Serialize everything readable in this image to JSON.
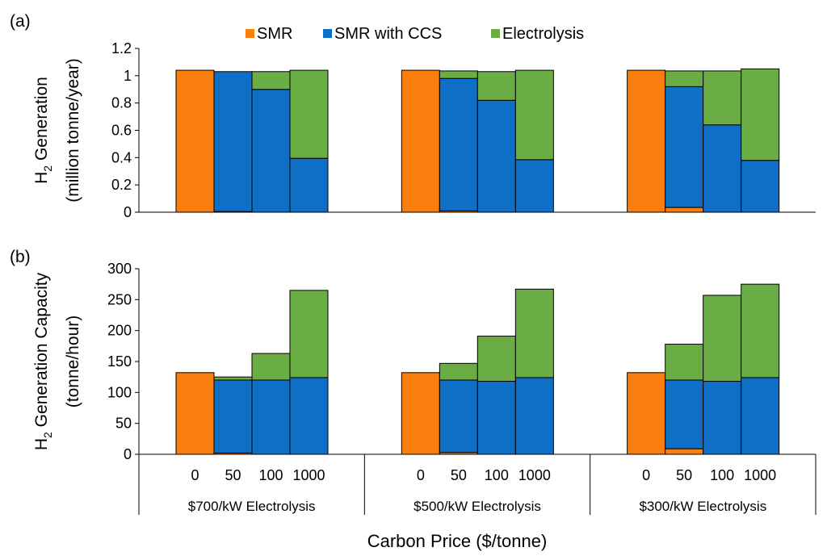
{
  "chart_data": {
    "type": "bar",
    "stacked": true,
    "xlabel": "Carbon Price ($/tonne)",
    "categories": [
      "0",
      "50",
      "100",
      "1000"
    ],
    "groups": [
      "$700/kW Electrolysis",
      "$500/kW Electrolysis",
      "$300/kW Electrolysis"
    ],
    "legend": {
      "position": "top",
      "entries": [
        "SMR",
        "SMR with CCS",
        "Electrolysis"
      ]
    },
    "colors": {
      "SMR": "#F97E0E",
      "SMR with CCS": "#0F6FC6",
      "Electrolysis": "#6BAD45"
    },
    "grid": false,
    "panels": [
      {
        "label": "(a)",
        "ylabel_lines": [
          {
            "main": "H",
            "sub": "2",
            "rest": " Generation"
          },
          {
            "main": "(million tonne/year)",
            "sub": "",
            "rest": ""
          }
        ],
        "ylim": [
          0,
          1.2
        ],
        "yticks": [
          "0",
          "0.2",
          "0.4",
          "0.6",
          "0.8",
          "1",
          "1.2"
        ],
        "series": [
          {
            "name": "SMR",
            "values": [
              [
                1.04,
                0.005,
                0,
                0
              ],
              [
                1.04,
                0.01,
                0,
                0
              ],
              [
                1.04,
                0.035,
                0,
                0
              ]
            ]
          },
          {
            "name": "SMR with CCS",
            "values": [
              [
                0,
                1.025,
                0.9,
                0.395
              ],
              [
                0,
                0.97,
                0.82,
                0.385
              ],
              [
                0,
                0.885,
                0.64,
                0.38
              ]
            ]
          },
          {
            "name": "Electrolysis",
            "values": [
              [
                0,
                0,
                0.13,
                0.645
              ],
              [
                0,
                0.055,
                0.21,
                0.655
              ],
              [
                0,
                0.115,
                0.395,
                0.67
              ]
            ]
          }
        ]
      },
      {
        "label": "(b)",
        "ylabel_lines": [
          {
            "main": "H",
            "sub": "2",
            "rest": " Generation Capacity"
          },
          {
            "main": "(tonne/hour)",
            "sub": "",
            "rest": ""
          }
        ],
        "ylim": [
          0,
          300
        ],
        "yticks": [
          "0",
          "50",
          "100",
          "150",
          "200",
          "250",
          "300"
        ],
        "series": [
          {
            "name": "SMR",
            "values": [
              [
                132,
                2,
                0,
                0
              ],
              [
                132,
                3,
                0,
                0
              ],
              [
                132,
                9,
                0,
                0
              ]
            ]
          },
          {
            "name": "SMR with CCS",
            "values": [
              [
                0,
                118,
                120,
                124
              ],
              [
                0,
                117,
                118,
                124
              ],
              [
                0,
                111,
                118,
                124
              ]
            ]
          },
          {
            "name": "Electrolysis",
            "values": [
              [
                0,
                5,
                43,
                141
              ],
              [
                0,
                27,
                73,
                143
              ],
              [
                0,
                58,
                139,
                151
              ]
            ]
          }
        ]
      }
    ]
  }
}
